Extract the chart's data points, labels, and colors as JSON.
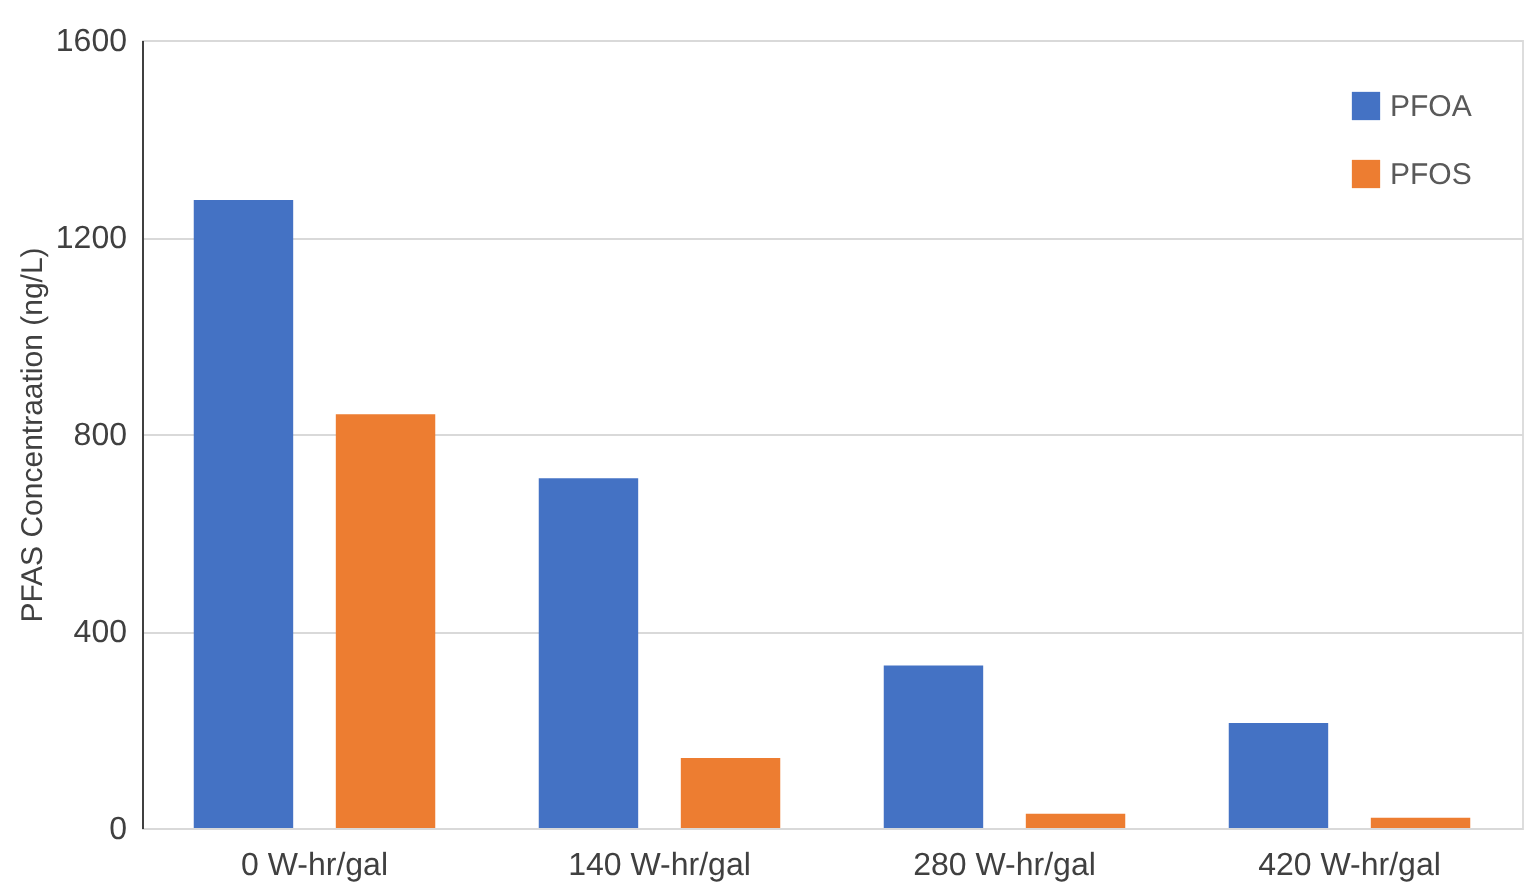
{
  "chart_data": {
    "type": "bar",
    "ylabel": "PFAS Concentraation (ng/L)",
    "categories": [
      "0 W-hr/gal",
      "140 W-hr/gal",
      "280 W-hr/gal",
      "420 W-hr/gal"
    ],
    "series": [
      {
        "name": "PFOA",
        "color": "#4472c4",
        "values": [
          1275,
          710,
          330,
          213
        ]
      },
      {
        "name": "PFOS",
        "color": "#ed7d31",
        "values": [
          840,
          142,
          29,
          21
        ]
      }
    ],
    "ylim": [
      0,
      1600
    ],
    "yticks": [
      0,
      400,
      800,
      1200,
      1600
    ],
    "grid": "y",
    "legend": "top right"
  }
}
